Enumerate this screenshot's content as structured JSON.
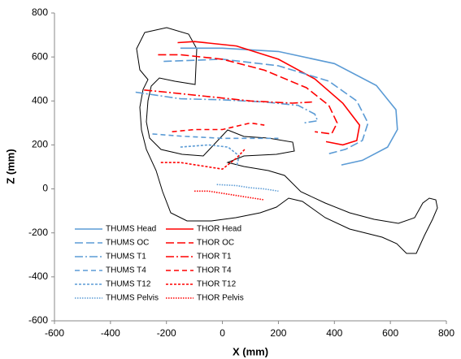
{
  "chart_data": {
    "type": "line",
    "xlabel": "X  (mm)",
    "ylabel": "Z  (mm)",
    "xlim": [
      -600,
      800
    ],
    "xticks": [
      -600,
      -400,
      -200,
      0,
      200,
      400,
      600,
      800
    ],
    "ylim": [
      -600,
      800
    ],
    "yticks": [
      -600,
      -400,
      -200,
      0,
      200,
      400,
      600,
      800
    ],
    "legend": "lower-left",
    "series": [
      {
        "name": "THUMS Head",
        "color": "#5b9bd5",
        "dash": "solid",
        "x": [
          -150,
          0,
          200,
          400,
          550,
          620,
          625,
          590,
          500,
          425
        ],
        "y": [
          640,
          640,
          625,
          570,
          470,
          360,
          270,
          190,
          130,
          109
        ]
      },
      {
        "name": "THOR Head",
        "color": "#ff0000",
        "dash": "solid",
        "x": [
          -160,
          -100,
          50,
          200,
          330,
          430,
          490,
          480,
          430,
          370
        ],
        "y": [
          665,
          670,
          650,
          590,
          500,
          390,
          290,
          220,
          200,
          215
        ]
      },
      {
        "name": "THUMS OC",
        "color": "#5b9bd5",
        "dash": "longdash",
        "x": [
          -210,
          0,
          200,
          380,
          480,
          520,
          500,
          440,
          380
        ],
        "y": [
          580,
          590,
          560,
          490,
          400,
          300,
          220,
          180,
          160
        ]
      },
      {
        "name": "THOR OC",
        "color": "#ff0000",
        "dash": "longdash",
        "x": [
          -230,
          -150,
          0,
          150,
          300,
          380,
          410,
          390,
          330
        ],
        "y": [
          610,
          610,
          590,
          540,
          460,
          380,
          300,
          250,
          260
        ]
      },
      {
        "name": "THUMS T1",
        "color": "#5b9bd5",
        "dash": "dashdot",
        "x": [
          -310,
          -150,
          0,
          150,
          270,
          330,
          340,
          290
        ],
        "y": [
          440,
          410,
          405,
          395,
          380,
          340,
          310,
          300
        ]
      },
      {
        "name": "THOR T1",
        "color": "#ff0000",
        "dash": "dashdot",
        "x": [
          -280,
          -200,
          -50,
          100,
          250,
          320
        ],
        "y": [
          450,
          440,
          420,
          400,
          390,
          395
        ]
      },
      {
        "name": "THUMS T4",
        "color": "#5b9bd5",
        "dash": "dash",
        "x": [
          -250,
          -150,
          0,
          150,
          200
        ],
        "y": [
          250,
          240,
          230,
          230,
          230
        ]
      },
      {
        "name": "THOR T4",
        "color": "#ff0000",
        "dash": "dash",
        "x": [
          -180,
          -100,
          0,
          100,
          150
        ],
        "y": [
          260,
          270,
          270,
          300,
          290
        ]
      },
      {
        "name": "THUMS T12",
        "color": "#5b9bd5",
        "dash": "shortdash",
        "x": [
          -150,
          -50,
          20,
          60,
          50
        ],
        "y": [
          190,
          200,
          190,
          150,
          100
        ]
      },
      {
        "name": "THOR T12",
        "color": "#ff0000",
        "dash": "shortdash",
        "x": [
          -220,
          -150,
          -50,
          0,
          50,
          80
        ],
        "y": [
          120,
          120,
          100,
          90,
          140,
          180
        ]
      },
      {
        "name": "THUMS Pelvis",
        "color": "#5b9bd5",
        "dash": "dot",
        "x": [
          -20,
          50,
          100,
          150,
          200
        ],
        "y": [
          20,
          15,
          5,
          0,
          -10
        ]
      },
      {
        "name": "THOR Pelvis",
        "color": "#ff0000",
        "dash": "dot",
        "x": [
          -100,
          -50,
          0,
          50,
          100,
          150
        ],
        "y": [
          -10,
          -10,
          -20,
          -30,
          -40,
          -50
        ]
      }
    ]
  }
}
